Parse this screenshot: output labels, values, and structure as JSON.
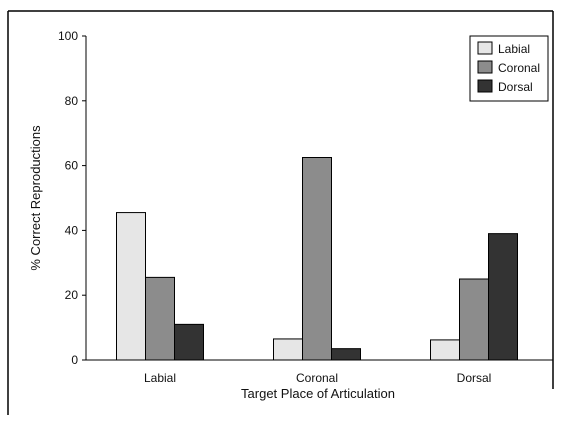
{
  "chart_data": {
    "type": "bar",
    "xlabel": "Target Place of Articulation",
    "ylabel": "% Correct Reproductions",
    "categories": [
      "Labial",
      "Coronal",
      "Dorsal"
    ],
    "ylim": [
      0,
      100
    ],
    "yticks": [
      0,
      20,
      40,
      60,
      80,
      100
    ],
    "grid": false,
    "legend_position": "top-right",
    "series": [
      {
        "name": "Labial",
        "color": "#e6e6e6",
        "values": [
          45.5,
          6.5,
          6.2
        ]
      },
      {
        "name": "Coronal",
        "color": "#8c8c8c",
        "values": [
          25.5,
          62.5,
          25.0
        ]
      },
      {
        "name": "Dorsal",
        "color": "#333333",
        "values": [
          11.0,
          3.5,
          39.0
        ]
      }
    ]
  }
}
